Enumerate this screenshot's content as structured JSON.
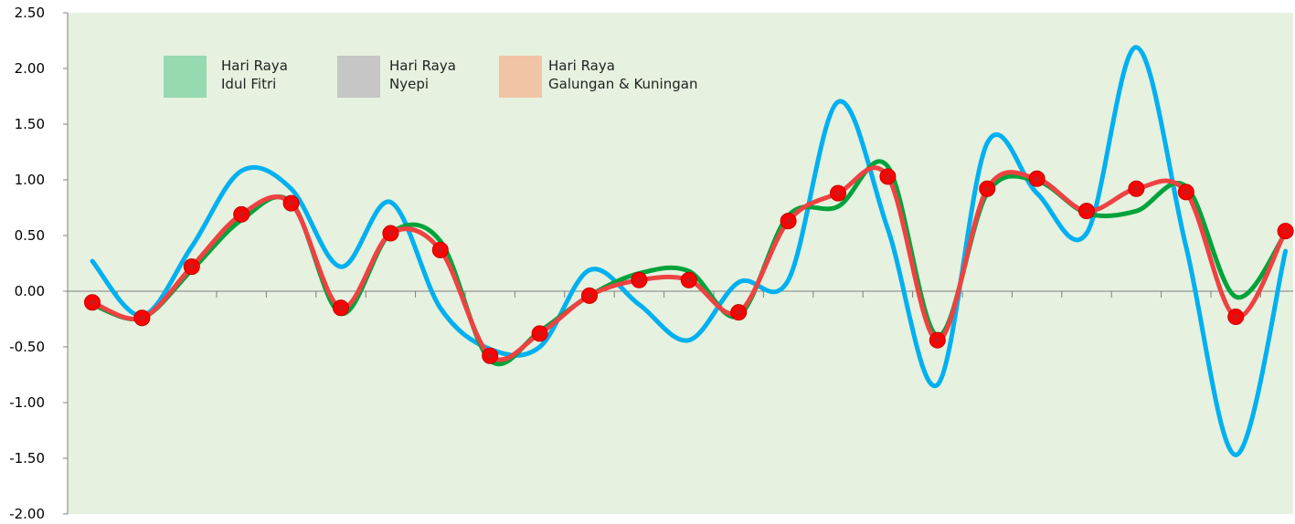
{
  "chart_data": {
    "type": "line",
    "title": "",
    "xlabel": "",
    "ylabel": "",
    "ylim": [
      -2.0,
      2.5
    ],
    "yticks": [
      "2.50",
      "2.00",
      "1.50",
      "1.00",
      "0.50",
      "0.00",
      "-0.50",
      "-1.00",
      "-1.50",
      "-2.00"
    ],
    "ytick_values": [
      2.5,
      2.0,
      1.5,
      1.0,
      0.5,
      0.0,
      -0.5,
      -1.0,
      -1.5,
      -2.0
    ],
    "x_count": 25,
    "grid": false,
    "plot_background": "#E6F1DF",
    "legend_position": "top-left",
    "legend": [
      {
        "line1": "Hari Raya",
        "line2": "Idul Fitri",
        "color": "#97D9B1"
      },
      {
        "line1": "Hari Raya",
        "line2": "Nyepi",
        "color": "#C6C6C6"
      },
      {
        "line1": "Hari Raya",
        "line2": "Galungan & Kuningan",
        "color": "#F2C4A6"
      }
    ],
    "series": [
      {
        "color": "#00B0F0",
        "marker": false,
        "points": [
          [
            0,
            0.27
          ],
          [
            1,
            -0.22
          ],
          [
            2,
            0.4
          ],
          [
            3,
            1.08
          ],
          [
            4,
            0.92
          ],
          [
            5,
            0.22
          ],
          [
            6,
            0.8
          ],
          [
            7,
            -0.15
          ],
          [
            8,
            -0.52
          ],
          [
            9,
            -0.5
          ],
          [
            10,
            0.19
          ],
          [
            11,
            -0.12
          ],
          [
            12,
            -0.44
          ],
          [
            13,
            0.08
          ],
          [
            14,
            0.1
          ],
          [
            15,
            1.7
          ],
          [
            16,
            0.56
          ],
          [
            17,
            -0.84
          ],
          [
            18,
            1.33
          ],
          [
            19,
            0.88
          ],
          [
            20,
            0.52
          ],
          [
            21,
            2.19
          ],
          [
            22,
            0.4
          ],
          [
            23,
            -1.47
          ],
          [
            24,
            0.36
          ]
        ]
      },
      {
        "color": "#00A33B",
        "marker": false,
        "points": [
          [
            0,
            -0.12
          ],
          [
            1,
            -0.24
          ],
          [
            2,
            0.19
          ],
          [
            3,
            0.64
          ],
          [
            4,
            0.8
          ],
          [
            5,
            -0.2
          ],
          [
            6,
            0.52
          ],
          [
            7,
            0.45
          ],
          [
            8,
            -0.62
          ],
          [
            9,
            -0.36
          ],
          [
            10,
            -0.04
          ],
          [
            11,
            0.16
          ],
          [
            12,
            0.18
          ],
          [
            13,
            -0.22
          ],
          [
            14,
            0.68
          ],
          [
            15,
            0.76
          ],
          [
            16,
            1.12
          ],
          [
            17,
            -0.4
          ],
          [
            18,
            0.88
          ],
          [
            19,
            0.99
          ],
          [
            20,
            0.7
          ],
          [
            21,
            0.72
          ],
          [
            22,
            0.94
          ],
          [
            23,
            -0.05
          ],
          [
            24,
            0.52
          ]
        ]
      },
      {
        "color": "#EE4242",
        "marker": true,
        "marker_color": "#FF0000",
        "points": [
          [
            0,
            -0.1
          ],
          [
            1,
            -0.24
          ],
          [
            2,
            0.22
          ],
          [
            3,
            0.69
          ],
          [
            4,
            0.79
          ],
          [
            5,
            -0.15
          ],
          [
            6,
            0.52
          ],
          [
            7,
            0.37
          ],
          [
            8,
            -0.58
          ],
          [
            9,
            -0.38
          ],
          [
            10,
            -0.04
          ],
          [
            11,
            0.1
          ],
          [
            12,
            0.1
          ],
          [
            13,
            -0.19
          ],
          [
            14,
            0.63
          ],
          [
            15,
            0.88
          ],
          [
            16,
            1.03
          ],
          [
            17,
            -0.44
          ],
          [
            18,
            0.92
          ],
          [
            19,
            1.01
          ],
          [
            20,
            0.72
          ],
          [
            21,
            0.92
          ],
          [
            22,
            0.89
          ],
          [
            23,
            -0.23
          ],
          [
            24,
            0.54
          ]
        ]
      }
    ]
  }
}
